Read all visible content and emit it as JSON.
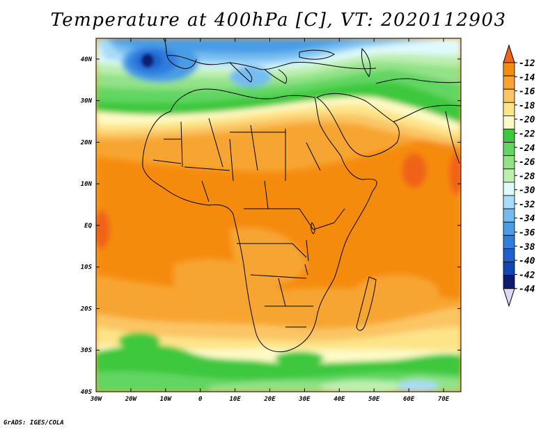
{
  "title": "Temperature at 400hPa [C], VT: 2020112903",
  "credit": "GrADS: IGES/COLA",
  "map": {
    "lon_range": [
      -30,
      75
    ],
    "lat_range": [
      -40,
      45
    ],
    "lat_labels": [
      "40N",
      "30N",
      "20N",
      "10N",
      "EQ",
      "10S",
      "20S",
      "30S",
      "40S"
    ],
    "lon_labels": [
      "30W",
      "20W",
      "10W",
      "0",
      "10E",
      "20E",
      "30E",
      "40E",
      "50E",
      "60E",
      "70E"
    ]
  },
  "colorbar": {
    "labels": [
      "-12",
      "-14",
      "-16",
      "-18",
      "-20",
      "-22",
      "-24",
      "-26",
      "-28",
      "-30",
      "-32",
      "-34",
      "-36",
      "-38",
      "-40",
      "-42",
      "-44"
    ],
    "colors": [
      "#f06418",
      "#f58b0f",
      "#f7a532",
      "#fbc565",
      "#fde489",
      "#fefac5",
      "#3ec83e",
      "#62d662",
      "#93e288",
      "#bdefb1",
      "#e0fafb",
      "#a9dcf8",
      "#74bcf0",
      "#4a9ce6",
      "#2f7dde",
      "#1e60cc",
      "#1246b4",
      "#0f1a6e",
      "#dcd8f6"
    ]
  }
}
